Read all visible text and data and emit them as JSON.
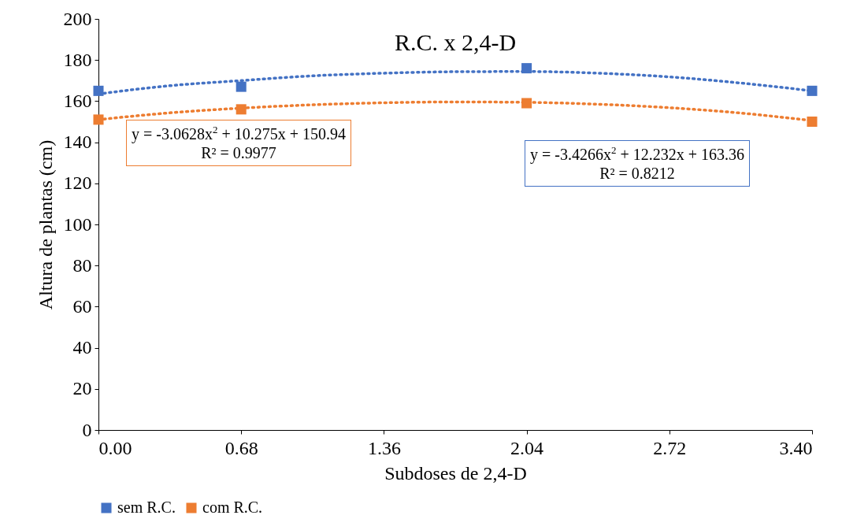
{
  "chart_data": {
    "type": "scatter",
    "title": "R.C. x 2,4-D",
    "xlabel": "Subdoses de 2,4-D",
    "ylabel": "Altura de plantas (cm)",
    "x": [
      0,
      0.68,
      2.04,
      3.4
    ],
    "series": [
      {
        "name": "sem R.C.",
        "color": "#4472c4",
        "values": [
          165,
          167,
          176,
          165
        ]
      },
      {
        "name": "com R.C.",
        "color": "#ed7d31",
        "values": [
          151,
          156,
          159,
          150
        ]
      },
      {
        "type": "line",
        "color": "#4472c4",
        "line_style": "dotted",
        "marker": "none",
        "x": [
          0,
          0.34,
          0.68,
          1.02,
          1.36,
          1.7,
          2.04,
          2.38,
          2.72,
          3.06,
          3.4
        ],
        "values": [
          163.5,
          167.5,
          170,
          172.3,
          173.6,
          174.3,
          174.4,
          173.6,
          171.8,
          168.8,
          165
        ]
      },
      {
        "type": "line",
        "color": "#ed7d31",
        "line_style": "dotted",
        "marker": "none",
        "x": [
          0,
          0.34,
          0.68,
          1.02,
          1.36,
          1.7,
          2.04,
          2.38,
          2.72,
          3.06,
          3.4
        ],
        "values": [
          151,
          154.3,
          156.6,
          158.2,
          159.2,
          159.6,
          159.4,
          158.5,
          156.8,
          154.2,
          150.5
        ]
      }
    ],
    "marker": "square",
    "xlim": [
      0,
      3.4
    ],
    "ylim": [
      0,
      200
    ],
    "xticks": [
      {
        "value": 0,
        "label": "0.00"
      },
      {
        "value": 0.68,
        "label": "0.68"
      },
      {
        "value": 1.36,
        "label": "1.36"
      },
      {
        "value": 2.04,
        "label": "2.04"
      },
      {
        "value": 2.72,
        "label": "2.72"
      },
      {
        "value": 3.4,
        "label": "3.40"
      }
    ],
    "yticks": [
      0,
      20,
      40,
      60,
      80,
      100,
      120,
      140,
      160,
      180,
      200
    ],
    "grid": false,
    "legend": "bottom",
    "annotations": [
      "y = -3.0628x$^{2}$ + 10.275x + 150.94\nR² = 0.9977",
      "y = -3.4266x$^{2}$ + 12.232x + 163.36\nR² = 0.8212"
    ]
  }
}
